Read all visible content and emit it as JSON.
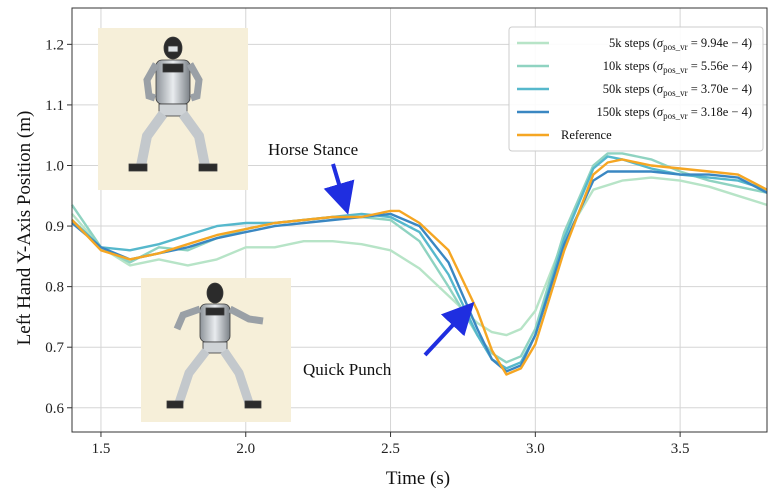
{
  "chart_data": {
    "type": "line",
    "xlabel": "Time (s)",
    "ylabel": "Left Hand Y-Axis Position (m)",
    "xlim": [
      1.4,
      3.8
    ],
    "ylim": [
      0.56,
      1.26
    ],
    "xticks": [
      "1.5",
      "2.0",
      "2.5",
      "3.0",
      "3.5"
    ],
    "yticks": [
      "0.6",
      "0.7",
      "0.8",
      "0.9",
      "1.0",
      "1.1",
      "1.2"
    ],
    "grid": true,
    "legend_position": "top-right",
    "series": [
      {
        "name": "5k steps (σ_pos_vr = 9.94e − 4)",
        "legend": {
          "text": "5k steps (",
          "sym": "σ",
          "sub": "pos_vr",
          "rest": " = 9.94e − 4)"
        },
        "color": "#b7e4c7",
        "x": [
          1.4,
          1.5,
          1.6,
          1.7,
          1.8,
          1.9,
          2.0,
          2.1,
          2.2,
          2.3,
          2.4,
          2.5,
          2.6,
          2.7,
          2.8,
          2.85,
          2.9,
          2.95,
          3.0,
          3.1,
          3.2,
          3.3,
          3.4,
          3.5,
          3.6,
          3.7,
          3.8
        ],
        "y": [
          0.92,
          0.865,
          0.835,
          0.845,
          0.835,
          0.845,
          0.865,
          0.865,
          0.875,
          0.875,
          0.87,
          0.86,
          0.83,
          0.785,
          0.74,
          0.725,
          0.72,
          0.73,
          0.76,
          0.88,
          0.96,
          0.975,
          0.98,
          0.975,
          0.965,
          0.95,
          0.935
        ]
      },
      {
        "name": "10k steps (σ_pos_vr = 5.56e − 4)",
        "legend": {
          "text": "10k steps (",
          "sym": "σ",
          "sub": "pos_vr",
          "rest": " = 5.56e − 4)"
        },
        "color": "#8fd3c1",
        "x": [
          1.4,
          1.5,
          1.6,
          1.7,
          1.8,
          1.9,
          2.0,
          2.1,
          2.2,
          2.3,
          2.4,
          2.5,
          2.6,
          2.7,
          2.8,
          2.85,
          2.9,
          2.95,
          3.0,
          3.1,
          3.2,
          3.25,
          3.3,
          3.4,
          3.5,
          3.6,
          3.7,
          3.8
        ],
        "y": [
          0.935,
          0.865,
          0.84,
          0.865,
          0.86,
          0.88,
          0.895,
          0.905,
          0.91,
          0.915,
          0.915,
          0.91,
          0.875,
          0.8,
          0.72,
          0.69,
          0.675,
          0.685,
          0.73,
          0.89,
          1.0,
          1.02,
          1.02,
          1.01,
          0.99,
          0.975,
          0.965,
          0.955
        ]
      },
      {
        "name": "50k steps (σ_pos_vr = 3.70e − 4)",
        "legend": {
          "text": "50k steps (",
          "sym": "σ",
          "sub": "pos_vr",
          "rest": " = 3.70e − 4)"
        },
        "color": "#56b8cc",
        "x": [
          1.4,
          1.5,
          1.6,
          1.7,
          1.8,
          1.9,
          2.0,
          2.1,
          2.2,
          2.3,
          2.4,
          2.5,
          2.6,
          2.7,
          2.8,
          2.85,
          2.9,
          2.95,
          3.0,
          3.1,
          3.2,
          3.25,
          3.3,
          3.4,
          3.5,
          3.6,
          3.7,
          3.8
        ],
        "y": [
          0.91,
          0.865,
          0.86,
          0.87,
          0.885,
          0.9,
          0.905,
          0.905,
          0.91,
          0.915,
          0.92,
          0.915,
          0.89,
          0.82,
          0.72,
          0.68,
          0.665,
          0.675,
          0.72,
          0.88,
          0.995,
          1.015,
          1.01,
          0.995,
          0.985,
          0.98,
          0.975,
          0.96
        ]
      },
      {
        "name": "150k steps (σ_pos_vr = 3.18e − 4)",
        "legend": {
          "text": "150k steps (",
          "sym": "σ",
          "sub": "pos_vr",
          "rest": " = 3.18e − 4)"
        },
        "color": "#3a87c2",
        "x": [
          1.4,
          1.5,
          1.6,
          1.7,
          1.8,
          1.9,
          2.0,
          2.1,
          2.2,
          2.3,
          2.4,
          2.5,
          2.6,
          2.7,
          2.8,
          2.85,
          2.9,
          2.95,
          3.0,
          3.1,
          3.2,
          3.25,
          3.3,
          3.4,
          3.5,
          3.6,
          3.7,
          3.8
        ],
        "y": [
          0.905,
          0.865,
          0.845,
          0.855,
          0.865,
          0.88,
          0.89,
          0.9,
          0.905,
          0.91,
          0.915,
          0.92,
          0.9,
          0.84,
          0.73,
          0.68,
          0.66,
          0.67,
          0.72,
          0.87,
          0.975,
          0.99,
          0.99,
          0.99,
          0.985,
          0.985,
          0.98,
          0.955
        ]
      },
      {
        "name": "Reference",
        "legend": {
          "text": "Reference",
          "sym": "",
          "sub": "",
          "rest": ""
        },
        "color": "#f5a623",
        "x": [
          1.4,
          1.5,
          1.6,
          1.7,
          1.8,
          1.9,
          2.0,
          2.1,
          2.2,
          2.3,
          2.4,
          2.5,
          2.53,
          2.6,
          2.7,
          2.8,
          2.85,
          2.9,
          2.95,
          3.0,
          3.1,
          3.2,
          3.25,
          3.3,
          3.4,
          3.5,
          3.6,
          3.7,
          3.8
        ],
        "y": [
          0.91,
          0.86,
          0.845,
          0.855,
          0.87,
          0.885,
          0.895,
          0.905,
          0.91,
          0.915,
          0.915,
          0.925,
          0.925,
          0.905,
          0.86,
          0.76,
          0.695,
          0.655,
          0.665,
          0.705,
          0.86,
          0.985,
          1.005,
          1.01,
          1.0,
          0.995,
          0.99,
          0.985,
          0.96
        ]
      }
    ],
    "annotations": [
      {
        "label": "Horse Stance",
        "arrow_to": {
          "x": 2.35,
          "y": 0.925
        }
      },
      {
        "label": "Quick Punch",
        "arrow_to": {
          "x": 2.78,
          "y": 0.77
        }
      }
    ]
  }
}
